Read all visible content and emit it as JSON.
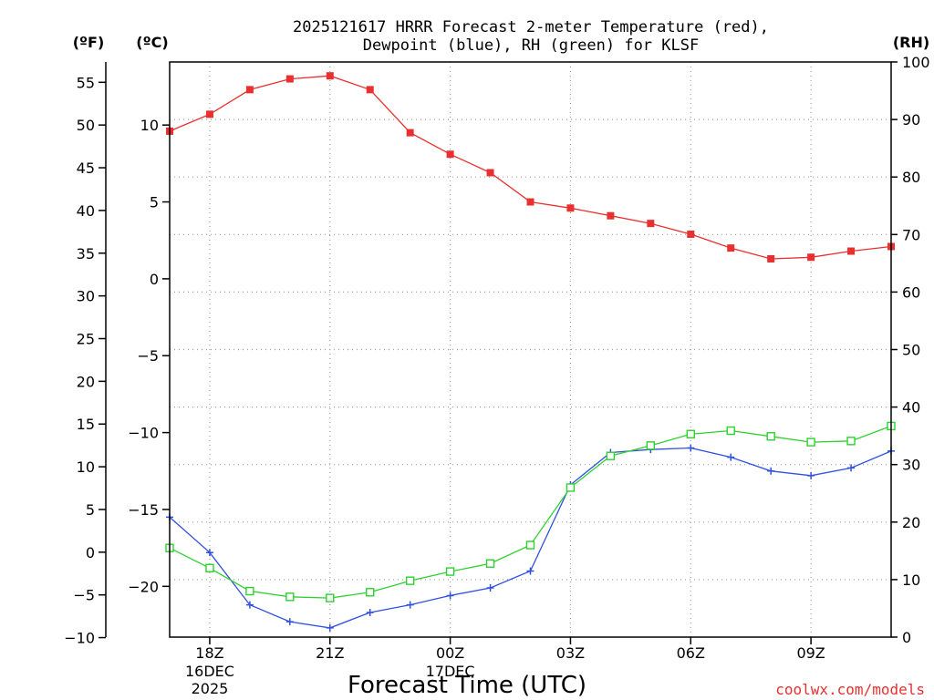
{
  "chart_data": {
    "type": "line",
    "title_line1": "2025121617 HRRR Forecast 2-meter Temperature (red),",
    "title_line2": "Dewpoint (blue), RH (green) for KLSF",
    "xlabel": "Forecast Time (UTC)",
    "credit": "coolwx.com/models",
    "units": {
      "f": "(ºF)",
      "c": "(ºC)",
      "rh": "(RH)"
    },
    "x_hours": [
      17,
      18,
      19,
      20,
      21,
      22,
      23,
      24,
      25,
      26,
      27,
      28,
      29,
      30,
      31,
      32,
      33,
      34,
      35
    ],
    "x_ticks": [
      {
        "hour": 18,
        "label": "18Z",
        "date1": "16DEC",
        "date2": "2025"
      },
      {
        "hour": 21,
        "label": "21Z",
        "date1": "",
        "date2": ""
      },
      {
        "hour": 24,
        "label": "00Z",
        "date1": "17DEC",
        "date2": ""
      },
      {
        "hour": 27,
        "label": "03Z",
        "date1": "",
        "date2": ""
      },
      {
        "hour": 30,
        "label": "06Z",
        "date1": "",
        "date2": ""
      },
      {
        "hour": 33,
        "label": "09Z",
        "date1": "",
        "date2": ""
      }
    ],
    "xlim": [
      17,
      35
    ],
    "ylim_c": [
      -23.3,
      14.1
    ],
    "ylim_rh": [
      0,
      100
    ],
    "c_ticks": [
      "10",
      "5",
      "0",
      "−5",
      "−10",
      "−15",
      "−20"
    ],
    "c_tick_values": [
      10,
      5,
      0,
      -5,
      -10,
      -15,
      -20
    ],
    "f_ticks": [
      "55",
      "50",
      "45",
      "40",
      "35",
      "30",
      "25",
      "20",
      "15",
      "10",
      "5",
      "0",
      "−5",
      "−10"
    ],
    "f_tick_values": [
      55,
      50,
      45,
      40,
      35,
      30,
      25,
      20,
      15,
      10,
      5,
      0,
      -5,
      -10
    ],
    "rh_ticks": [
      "100",
      "90",
      "80",
      "70",
      "60",
      "50",
      "40",
      "30",
      "20",
      "10",
      "0"
    ],
    "rh_tick_values": [
      100,
      90,
      80,
      70,
      60,
      50,
      40,
      30,
      20,
      10,
      0
    ],
    "series": [
      {
        "name": "Temperature",
        "axis": "c",
        "color": "#e83030",
        "marker": "filled-square",
        "values": [
          9.6,
          10.7,
          12.3,
          13.0,
          13.2,
          12.3,
          9.5,
          8.1,
          6.9,
          5.0,
          4.6,
          4.1,
          3.6,
          2.9,
          2.0,
          1.3,
          1.4,
          1.8,
          2.1
        ]
      },
      {
        "name": "Dewpoint",
        "axis": "c",
        "color": "#3050e0",
        "marker": "plus",
        "values": [
          -15.5,
          -17.8,
          -21.2,
          -22.3,
          -22.7,
          -21.7,
          -21.2,
          -20.6,
          -20.1,
          -19.0,
          -13.4,
          -11.3,
          -11.1,
          -11.0,
          -11.6,
          -12.5,
          -12.8,
          -12.3,
          -11.2
        ]
      },
      {
        "name": "RH",
        "axis": "rh",
        "color": "#30d030",
        "marker": "open-square",
        "values": [
          15.5,
          12.0,
          8.0,
          7.0,
          6.8,
          7.8,
          9.8,
          11.4,
          12.8,
          16.0,
          26.0,
          31.5,
          33.3,
          35.3,
          35.9,
          34.9,
          33.9,
          34.1,
          36.7
        ]
      }
    ]
  }
}
